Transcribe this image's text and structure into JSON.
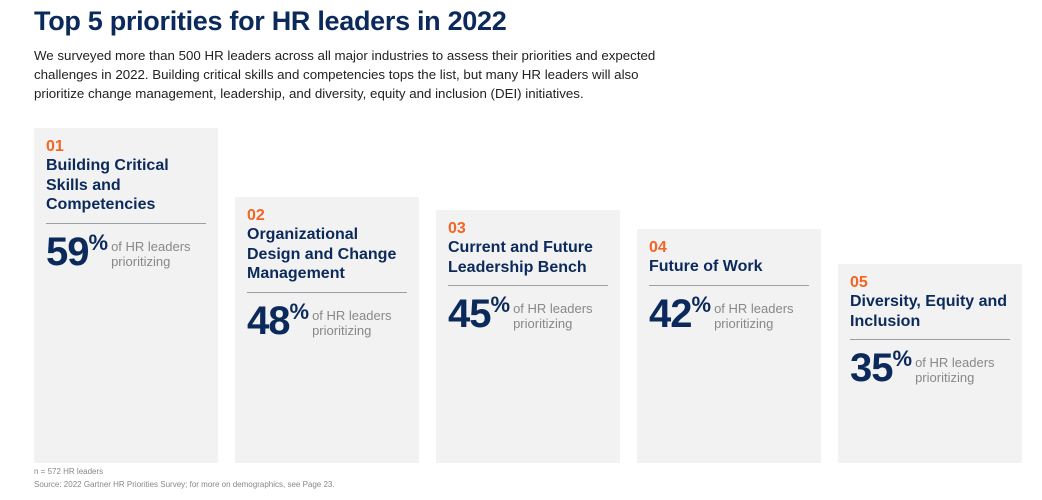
{
  "title": "Top 5 priorities for HR leaders in 2022",
  "intro": "We surveyed more than 500 HR leaders across all major industries to assess their priorities and expected challenges in 2022. Building critical skills and competencies tops the list, but many HR leaders will also prioritize change management, leadership, and diversity, equity and inclusion (DEI) initiatives.",
  "cards": [
    {
      "num": "01",
      "title": "Building Critical Skills and Competencies",
      "value": "59",
      "unit": "%",
      "label": "of HR leaders prioritizing"
    },
    {
      "num": "02",
      "title": "Organizational Design and Change Management",
      "value": "48",
      "unit": "%",
      "label": "of HR leaders prioritizing"
    },
    {
      "num": "03",
      "title": "Current and Future Leadership Bench",
      "value": "45",
      "unit": "%",
      "label": "of HR leaders prioritizing"
    },
    {
      "num": "04",
      "title": "Future of Work",
      "value": "42",
      "unit": "%",
      "label": "of HR leaders prioritizing"
    },
    {
      "num": "05",
      "title": "Diversity, Equity and Inclusion",
      "value": "35",
      "unit": "%",
      "label": "of HR leaders prioritizing"
    }
  ],
  "footnote": "n = 572 HR leaders",
  "source": "Source: 2022 Gartner HR Priorities Survey; for more on demographics, see Page 23.",
  "colors": {
    "navy": "#0b2a5b",
    "orange": "#f26522",
    "card_bg": "#f2f2f2"
  }
}
